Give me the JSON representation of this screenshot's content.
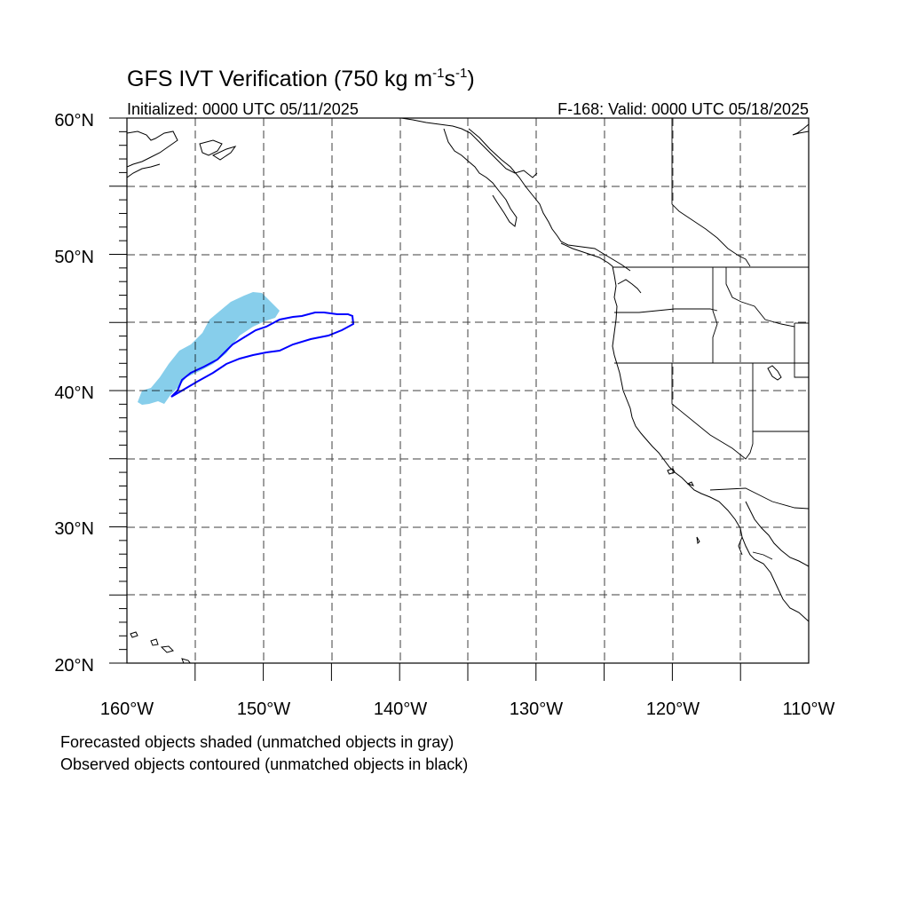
{
  "title": {
    "main": "GFS IVT Verification (750 kg m",
    "sup1": "-1",
    "mid": "s",
    "sup2": "-1",
    "close": ")"
  },
  "initialized": "Initialized: 0000 UTC 05/11/2025",
  "valid": "F-168: Valid: 0000 UTC 05/18/2025",
  "footnotes": {
    "line1": "Forecasted objects shaded (unmatched objects in gray)",
    "line2": "Observed objects contoured (unmatched objects in black)"
  },
  "map": {
    "lon_range": [
      -160,
      -110
    ],
    "lat_range": [
      20,
      60
    ],
    "grid": "dashed every 5 degrees",
    "lon_labels": [
      "160°W",
      "150°W",
      "140°W",
      "130°W",
      "120°W",
      "110°W"
    ],
    "lat_labels": [
      "20°N",
      "30°N",
      "40°N",
      "50°N",
      "60°N"
    ],
    "forecast_fill_color": "#87ceeb",
    "observed_contour_color": "#0000ff",
    "coastline_color": "#000000"
  }
}
